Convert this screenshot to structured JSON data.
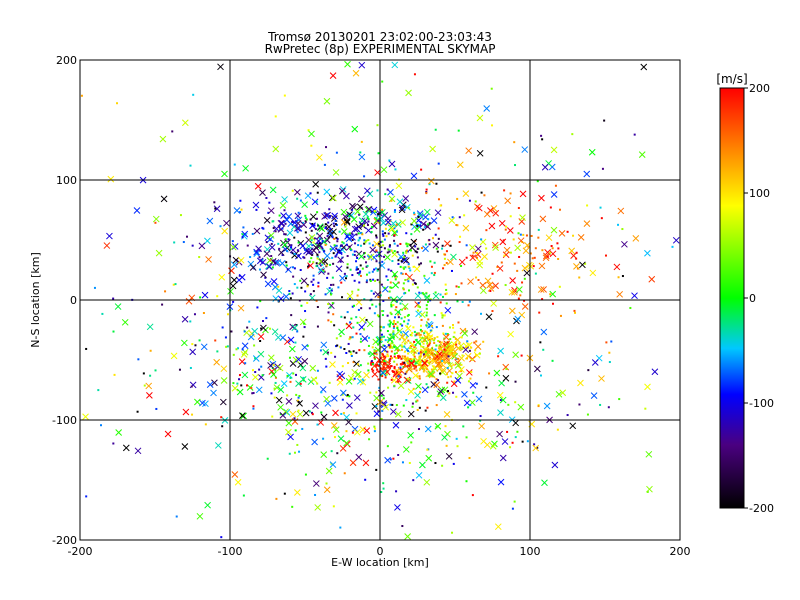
{
  "chart_data": {
    "type": "scatter",
    "title": "Tromsø 20130201 23:02:00-23:03:43",
    "subtitle": "RwPretec (8p) EXPERIMENTAL SKYMAP",
    "xlabel": "E-W location [km]",
    "ylabel": "N-S location [km]",
    "xlim": [
      -200,
      200
    ],
    "ylim": [
      -200,
      200
    ],
    "x_ticks": [
      "-200",
      "-100",
      "0",
      "100",
      "200"
    ],
    "y_ticks": [
      "-200",
      "-100",
      "0",
      "100",
      "200"
    ],
    "grid": true,
    "colorbar": {
      "unit": "[m/s]",
      "min": -200,
      "max": 200,
      "ticks": [
        "-200",
        "-100",
        "0",
        "100",
        "200"
      ]
    },
    "clusters": [
      {
        "cx": -40,
        "cy": 45,
        "sx": 30,
        "sy": 22,
        "n": 420,
        "vmean": -110,
        "vsd": 60
      },
      {
        "cx": 5,
        "cy": 50,
        "sx": 22,
        "sy": 18,
        "n": 180,
        "vmean": -60,
        "vsd": 90
      },
      {
        "cx": 85,
        "cy": 40,
        "sx": 40,
        "sy": 25,
        "n": 180,
        "vmean": 150,
        "vsd": 50
      },
      {
        "cx": 15,
        "cy": -20,
        "sx": 18,
        "sy": 25,
        "n": 300,
        "vmean": 20,
        "vsd": 60
      },
      {
        "cx": 35,
        "cy": -45,
        "sx": 15,
        "sy": 10,
        "n": 320,
        "vmean": 120,
        "vsd": 40
      },
      {
        "cx": 5,
        "cy": -55,
        "sx": 6,
        "sy": 5,
        "n": 70,
        "vmean": 195,
        "vsd": 8
      },
      {
        "cx": 25,
        "cy": -95,
        "sx": 55,
        "sy": 35,
        "n": 220,
        "vmean": -20,
        "vsd": 120
      },
      {
        "cx": -60,
        "cy": -60,
        "sx": 40,
        "sy": 35,
        "n": 200,
        "vmean": -20,
        "vsd": 120
      },
      {
        "cx": 0,
        "cy": 0,
        "sx": 110,
        "sy": 110,
        "n": 500,
        "vmean": 0,
        "vsd": 120
      }
    ]
  }
}
